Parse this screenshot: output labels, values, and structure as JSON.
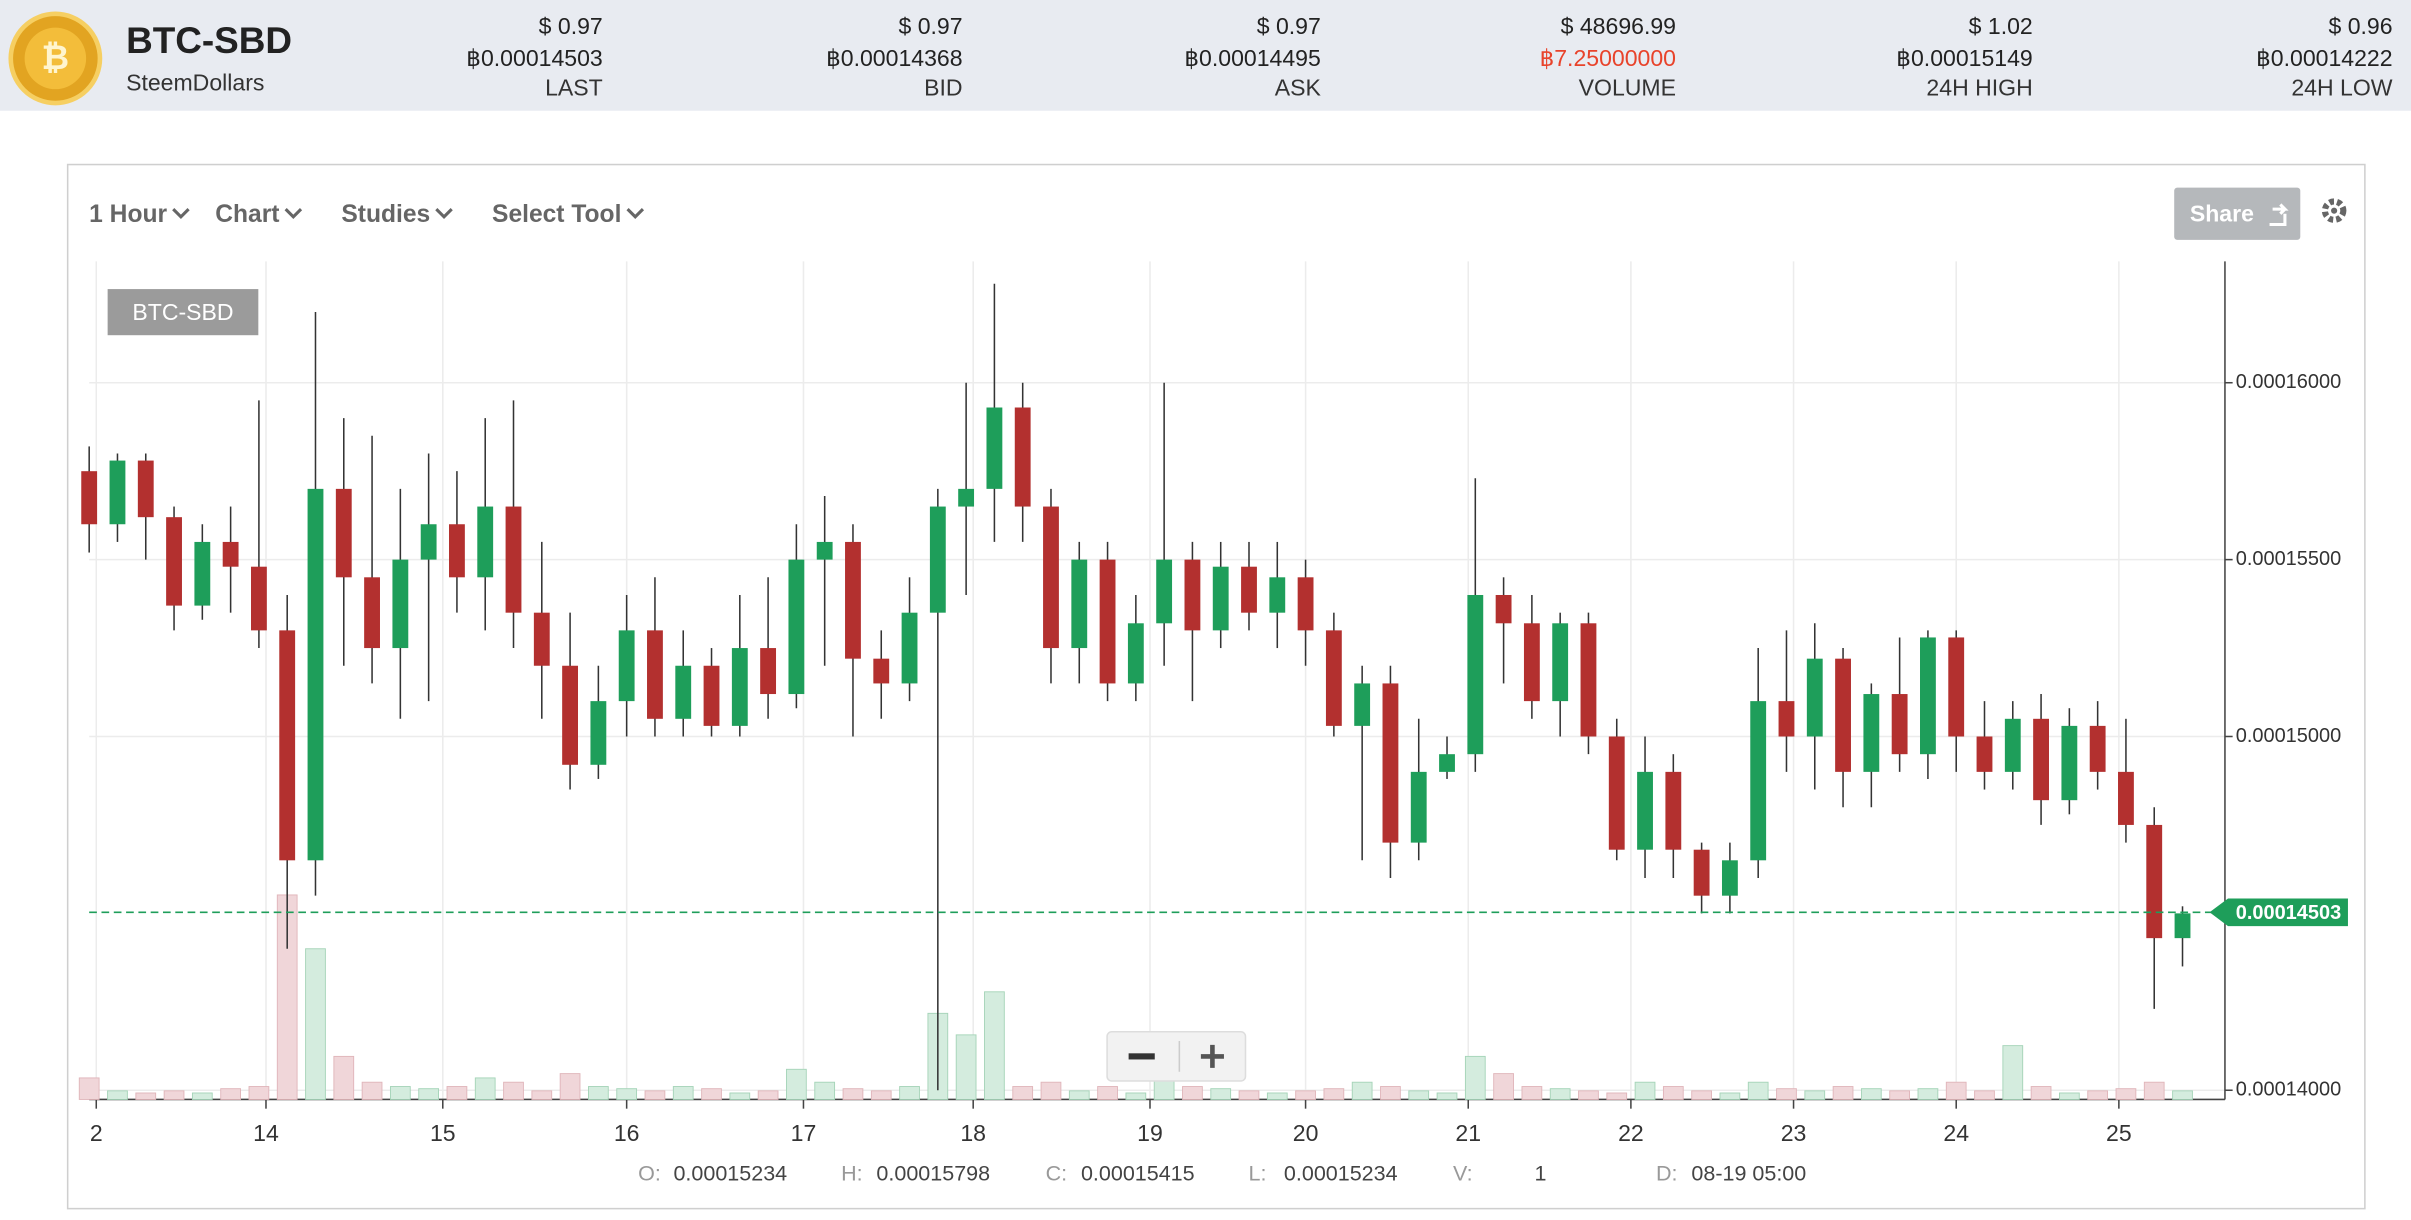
{
  "header": {
    "title": "BTC-SBD",
    "subtitle": "SteemDollars",
    "stats": [
      {
        "usd": "$ 0.97",
        "btc": "฿0.00014503",
        "label": "LAST"
      },
      {
        "usd": "$ 0.97",
        "btc": "฿0.00014368",
        "label": "BID"
      },
      {
        "usd": "$ 0.97",
        "btc": "฿0.00014495",
        "label": "ASK"
      },
      {
        "usd": "$ 48696.99",
        "btc": "฿7.25000000",
        "label": "VOLUME"
      },
      {
        "usd": "$ 1.02",
        "btc": "฿0.00015149",
        "label": "24H HIGH"
      },
      {
        "usd": "$ 0.96",
        "btc": "฿0.00014222",
        "label": "24H LOW"
      }
    ]
  },
  "toolbar": {
    "items": [
      "1 Hour",
      "Chart",
      "Studies",
      "Select Tool"
    ],
    "share": "Share"
  },
  "readout": [
    {
      "label": "O:",
      "value": "0.00015234"
    },
    {
      "label": "H:",
      "value": "0.00015798"
    },
    {
      "label": "C:",
      "value": "0.00015415"
    },
    {
      "label": "L:",
      "value": "0.00015234"
    },
    {
      "label": "V:",
      "value": "1"
    },
    {
      "label": "D:",
      "value": "08-19 05:00"
    }
  ],
  "chart_data": {
    "type": "candlestick",
    "legend": "BTC-SBD",
    "up_color": "#1e9e5a",
    "down_color": "#b3302f",
    "xlim": [
      0,
      302
    ],
    "ylim": [
      0.00013974,
      0.00016343
    ],
    "vlim": [
      0,
      100
    ],
    "grid": true,
    "xticks": [
      {
        "value": 1,
        "label": "2"
      },
      {
        "value": 25,
        "label": "14"
      },
      {
        "value": 50,
        "label": "15"
      },
      {
        "value": 76,
        "label": "16"
      },
      {
        "value": 101,
        "label": "17"
      },
      {
        "value": 125,
        "label": "18"
      },
      {
        "value": 150,
        "label": "19"
      },
      {
        "value": 172,
        "label": "20"
      },
      {
        "value": 195,
        "label": "21"
      },
      {
        "value": 218,
        "label": "22"
      },
      {
        "value": 241,
        "label": "23"
      },
      {
        "value": 264,
        "label": "24"
      },
      {
        "value": 287,
        "label": "25"
      }
    ],
    "yticks": [
      {
        "value": 0.00014,
        "label": "0.00014000"
      },
      {
        "value": 0.00015,
        "label": "0.00015000"
      },
      {
        "value": 0.000155,
        "label": "0.00015500"
      },
      {
        "value": 0.00016,
        "label": "0.00016000"
      }
    ],
    "current_price": {
      "value": 0.00014503,
      "label": "0.00014503"
    },
    "x": [
      0,
      4,
      8,
      12,
      16,
      20,
      24,
      28,
      32,
      36,
      40,
      44,
      48,
      52,
      56,
      60,
      64,
      68,
      72,
      76,
      80,
      84,
      88,
      92,
      96,
      100,
      104,
      108,
      112,
      116,
      120,
      124,
      128,
      132,
      136,
      140,
      144,
      148,
      152,
      156,
      160,
      164,
      168,
      172,
      176,
      180,
      184,
      188,
      192,
      196,
      200,
      204,
      208,
      212,
      216,
      220,
      224,
      228,
      232,
      236,
      240,
      244,
      248,
      252,
      256,
      260,
      264,
      268,
      272,
      276,
      280,
      284,
      288,
      292,
      296
    ],
    "ohlc": [
      [
        0.0001575,
        0.0001582,
        0.0001552,
        0.000156
      ],
      [
        0.000156,
        0.000158,
        0.0001555,
        0.0001578
      ],
      [
        0.0001578,
        0.000158,
        0.000155,
        0.0001562
      ],
      [
        0.0001562,
        0.0001565,
        0.000153,
        0.0001537
      ],
      [
        0.0001537,
        0.000156,
        0.0001533,
        0.0001555
      ],
      [
        0.0001555,
        0.0001565,
        0.0001535,
        0.0001548
      ],
      [
        0.0001548,
        0.0001595,
        0.0001525,
        0.000153
      ],
      [
        0.000153,
        0.000154,
        0.000144,
        0.0001465
      ],
      [
        0.0001465,
        0.000162,
        0.0001455,
        0.000157
      ],
      [
        0.000157,
        0.000159,
        0.000152,
        0.0001545
      ],
      [
        0.0001545,
        0.0001585,
        0.0001515,
        0.0001525
      ],
      [
        0.0001525,
        0.000157,
        0.0001505,
        0.000155
      ],
      [
        0.000155,
        0.000158,
        0.000151,
        0.000156
      ],
      [
        0.000156,
        0.0001575,
        0.0001535,
        0.0001545
      ],
      [
        0.0001545,
        0.000159,
        0.000153,
        0.0001565
      ],
      [
        0.0001565,
        0.0001595,
        0.0001525,
        0.0001535
      ],
      [
        0.0001535,
        0.0001555,
        0.0001505,
        0.000152
      ],
      [
        0.000152,
        0.0001535,
        0.0001485,
        0.0001492
      ],
      [
        0.0001492,
        0.000152,
        0.0001488,
        0.000151
      ],
      [
        0.000151,
        0.000154,
        0.00015,
        0.000153
      ],
      [
        0.000153,
        0.0001545,
        0.00015,
        0.0001505
      ],
      [
        0.0001505,
        0.000153,
        0.00015,
        0.000152
      ],
      [
        0.000152,
        0.0001525,
        0.00015,
        0.0001503
      ],
      [
        0.0001503,
        0.000154,
        0.00015,
        0.0001525
      ],
      [
        0.0001525,
        0.0001545,
        0.0001505,
        0.0001512
      ],
      [
        0.0001512,
        0.000156,
        0.0001508,
        0.000155
      ],
      [
        0.000155,
        0.0001568,
        0.000152,
        0.0001555
      ],
      [
        0.0001555,
        0.000156,
        0.00015,
        0.0001522
      ],
      [
        0.0001522,
        0.000153,
        0.0001505,
        0.0001515
      ],
      [
        0.0001515,
        0.0001545,
        0.000151,
        0.0001535
      ],
      [
        0.0001535,
        0.000157,
        0.00014,
        0.0001565
      ],
      [
        0.0001565,
        0.00016,
        0.000154,
        0.000157
      ],
      [
        0.000157,
        0.0001628,
        0.0001555,
        0.0001593
      ],
      [
        0.0001593,
        0.00016,
        0.0001555,
        0.0001565
      ],
      [
        0.0001565,
        0.000157,
        0.0001515,
        0.0001525
      ],
      [
        0.0001525,
        0.0001555,
        0.0001515,
        0.000155
      ],
      [
        0.000155,
        0.0001555,
        0.000151,
        0.0001515
      ],
      [
        0.0001515,
        0.000154,
        0.000151,
        0.0001532
      ],
      [
        0.0001532,
        0.00016,
        0.000152,
        0.000155
      ],
      [
        0.000155,
        0.0001555,
        0.000151,
        0.000153
      ],
      [
        0.000153,
        0.0001555,
        0.0001525,
        0.0001548
      ],
      [
        0.0001548,
        0.0001555,
        0.000153,
        0.0001535
      ],
      [
        0.0001535,
        0.0001555,
        0.0001525,
        0.0001545
      ],
      [
        0.0001545,
        0.000155,
        0.000152,
        0.000153
      ],
      [
        0.000153,
        0.0001535,
        0.00015,
        0.0001503
      ],
      [
        0.0001503,
        0.000152,
        0.0001465,
        0.0001515
      ],
      [
        0.0001515,
        0.000152,
        0.000146,
        0.000147
      ],
      [
        0.000147,
        0.0001505,
        0.0001465,
        0.000149
      ],
      [
        0.000149,
        0.00015,
        0.0001488,
        0.0001495
      ],
      [
        0.0001495,
        0.0001573,
        0.000149,
        0.000154
      ],
      [
        0.000154,
        0.0001545,
        0.0001515,
        0.0001532
      ],
      [
        0.0001532,
        0.000154,
        0.0001505,
        0.000151
      ],
      [
        0.000151,
        0.0001535,
        0.00015,
        0.0001532
      ],
      [
        0.0001532,
        0.0001535,
        0.0001495,
        0.00015
      ],
      [
        0.00015,
        0.0001505,
        0.0001465,
        0.0001468
      ],
      [
        0.0001468,
        0.00015,
        0.000146,
        0.000149
      ],
      [
        0.000149,
        0.0001495,
        0.000146,
        0.0001468
      ],
      [
        0.0001468,
        0.000147,
        0.000145,
        0.0001455
      ],
      [
        0.0001455,
        0.000147,
        0.000145,
        0.0001465
      ],
      [
        0.0001465,
        0.0001525,
        0.000146,
        0.000151
      ],
      [
        0.000151,
        0.000153,
        0.000149,
        0.00015
      ],
      [
        0.00015,
        0.0001532,
        0.0001485,
        0.0001522
      ],
      [
        0.0001522,
        0.0001525,
        0.000148,
        0.000149
      ],
      [
        0.000149,
        0.0001515,
        0.000148,
        0.0001512
      ],
      [
        0.0001512,
        0.0001528,
        0.000149,
        0.0001495
      ],
      [
        0.0001495,
        0.000153,
        0.0001488,
        0.0001528
      ],
      [
        0.0001528,
        0.000153,
        0.000149,
        0.00015
      ],
      [
        0.00015,
        0.000151,
        0.0001485,
        0.000149
      ],
      [
        0.000149,
        0.000151,
        0.0001485,
        0.0001505
      ],
      [
        0.0001505,
        0.0001512,
        0.0001475,
        0.0001482
      ],
      [
        0.0001482,
        0.0001508,
        0.0001478,
        0.0001503
      ],
      [
        0.0001503,
        0.000151,
        0.0001485,
        0.000149
      ],
      [
        0.000149,
        0.0001505,
        0.000147,
        0.0001475
      ],
      [
        0.0001475,
        0.000148,
        0.0001423,
        0.0001443
      ],
      [
        0.0001443,
        0.0001452,
        0.0001435,
        0.000145
      ]
    ],
    "volumes": [
      10,
      4,
      3,
      4,
      3,
      5,
      6,
      95,
      70,
      20,
      8,
      6,
      5,
      6,
      10,
      8,
      4,
      12,
      6,
      5,
      4,
      6,
      5,
      3,
      4,
      14,
      8,
      5,
      4,
      6,
      40,
      30,
      50,
      6,
      8,
      4,
      6,
      3,
      12,
      6,
      5,
      4,
      3,
      4,
      5,
      8,
      6,
      4,
      3,
      20,
      12,
      6,
      5,
      4,
      3,
      8,
      6,
      4,
      3,
      8,
      5,
      4,
      6,
      5,
      4,
      5,
      8,
      4,
      25,
      6,
      3,
      4,
      5,
      8,
      4
    ]
  }
}
